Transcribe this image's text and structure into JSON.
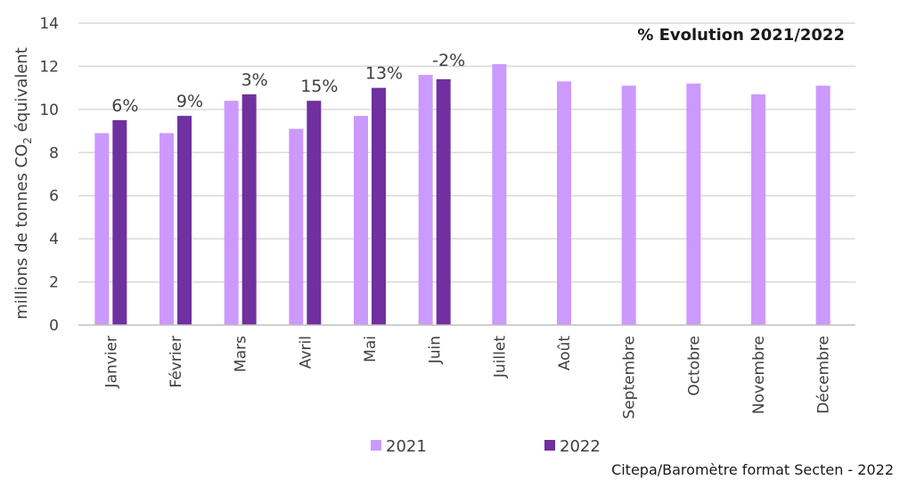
{
  "chart_data": {
    "type": "bar",
    "categories": [
      "Janvier",
      "Février",
      "Mars",
      "Avril",
      "Mai",
      "Juin",
      "Juillet",
      "Août",
      "Septembre",
      "Octobre",
      "Novembre",
      "Décembre"
    ],
    "series": [
      {
        "name": "2021",
        "color": "#cc99ff",
        "values": [
          8.9,
          8.9,
          10.4,
          9.1,
          9.7,
          11.6,
          12.1,
          11.3,
          11.1,
          11.2,
          10.7,
          11.1
        ]
      },
      {
        "name": "2022",
        "color": "#7030a0",
        "values": [
          9.5,
          9.7,
          10.7,
          10.4,
          11.0,
          11.4,
          null,
          null,
          null,
          null,
          null,
          null
        ]
      }
    ],
    "data_labels": [
      "6%",
      "9%",
      "3%",
      "15%",
      "13%",
      "-2%",
      "",
      "",
      "",
      "",
      "",
      ""
    ],
    "ylabel_main": "millions de tonnes CO",
    "ylabel_sub": "2",
    "ylabel_end": " équivalent",
    "ylim": [
      0,
      14
    ],
    "yticks": [
      "0",
      "2",
      "4",
      "6",
      "8",
      "10",
      "12",
      "14"
    ],
    "annotation": "% Evolution 2021/2022",
    "legend_position": "bottom",
    "grid": true
  },
  "source": "Citepa/Baromètre format Secten - 2022"
}
